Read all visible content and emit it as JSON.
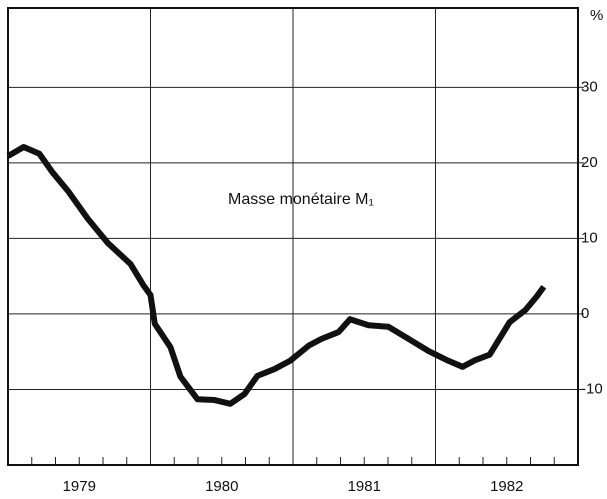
{
  "chart_data": {
    "type": "line",
    "annotation": "Masse monétaire M₁",
    "y_unit": "%",
    "x": [
      1979.0,
      1979.11,
      1979.22,
      1979.31,
      1979.42,
      1979.56,
      1979.7,
      1979.86,
      1979.95,
      1980.0,
      1980.03,
      1980.14,
      1980.21,
      1980.33,
      1980.45,
      1980.56,
      1980.66,
      1980.75,
      1980.87,
      1980.98,
      1981.11,
      1981.2,
      1981.32,
      1981.4,
      1981.53,
      1981.67,
      1981.81,
      1981.95,
      1982.09,
      1982.19,
      1982.28,
      1982.38,
      1982.52,
      1982.63,
      1982.71,
      1982.76
    ],
    "series": [
      {
        "color": "#111111",
        "values": [
          20.9,
          22.1,
          21.2,
          18.8,
          16.3,
          12.6,
          9.4,
          6.6,
          3.8,
          2.5,
          -1.3,
          -4.4,
          -8.3,
          -11.3,
          -11.4,
          -11.9,
          -10.6,
          -8.2,
          -7.3,
          -6.2,
          -4.2,
          -3.3,
          -2.4,
          -0.7,
          -1.5,
          -1.7,
          -3.3,
          -4.9,
          -6.2,
          -7.0,
          -6.1,
          -5.4,
          -1.1,
          0.5,
          2.3,
          3.6
        ]
      }
    ],
    "xlim": [
      1979,
      1983
    ],
    "xticks": [
      {
        "value": 1979,
        "label": "1979"
      },
      {
        "value": 1980,
        "label": "1980"
      },
      {
        "value": 1981,
        "label": "1981"
      },
      {
        "value": 1982,
        "label": "1982"
      }
    ],
    "ylim": [
      -20,
      40.5
    ],
    "yticks": [
      -10,
      0,
      10,
      20,
      30
    ],
    "grid": true
  }
}
